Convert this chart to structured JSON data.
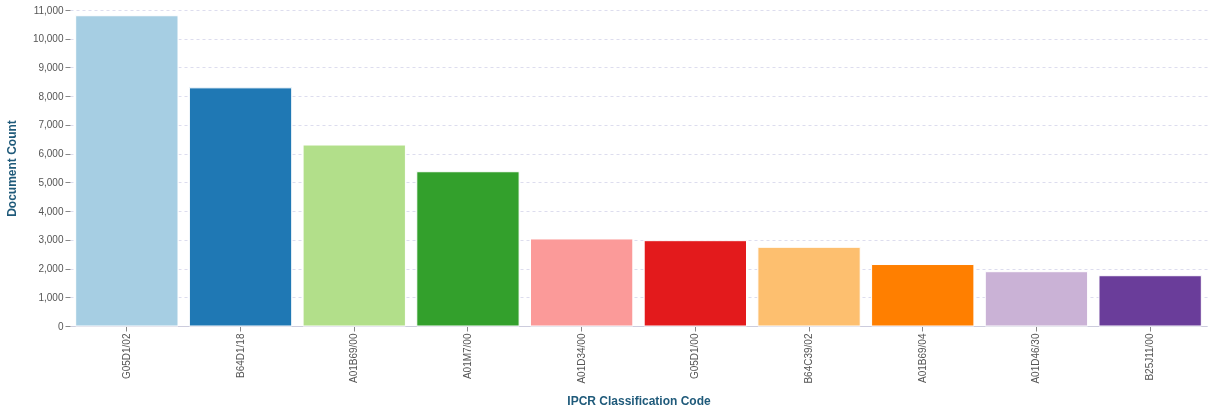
{
  "chart_data": {
    "type": "bar",
    "xlabel": "IPCR Classification Code",
    "ylabel": "Document Count",
    "categories": [
      "G05D1/02",
      "B64D1/18",
      "A01B69/00",
      "A01M7/00",
      "A01D34/00",
      "G05D1/00",
      "B64C39/02",
      "A01B69/04",
      "A01D46/30",
      "B25J11/00"
    ],
    "values": [
      10800,
      8290,
      6300,
      5370,
      3030,
      2970,
      2740,
      2140,
      1890,
      1750
    ],
    "colors": [
      "#a6cee3",
      "#1f78b4",
      "#b2df8a",
      "#33a02c",
      "#fb9a99",
      "#e31a1c",
      "#fdbf6f",
      "#ff7f00",
      "#cab2d6",
      "#6a3d9a"
    ],
    "ylim": [
      0,
      11000
    ],
    "yticks": [
      0,
      {
        "value": 1000,
        "label": "1,000"
      },
      {
        "value": 2000,
        "label": "2,000"
      },
      {
        "value": 3000,
        "label": "3,000"
      },
      {
        "value": 4000,
        "label": "4,000"
      },
      {
        "value": 5000,
        "label": "5,000"
      },
      {
        "value": 6000,
        "label": "6,000"
      },
      {
        "value": 7000,
        "label": "7,000"
      },
      {
        "value": 8000,
        "label": "8,000"
      },
      {
        "value": 9000,
        "label": "9,000"
      },
      {
        "value": 10000,
        "label": "10,000"
      },
      {
        "value": 11000,
        "label": "11,000"
      }
    ],
    "grid": "y",
    "legend": false
  }
}
